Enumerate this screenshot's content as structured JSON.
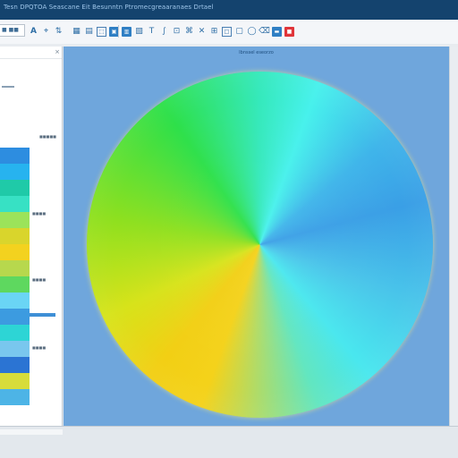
{
  "window": {
    "title": "Tesn DPQTOA Seascane Eit Besunntn Ptromecgreaaranaes Drtael"
  },
  "toolbar": {
    "file_box_label": "■ ■■",
    "buttons": [
      {
        "name": "font-a-icon",
        "glyph": "A"
      },
      {
        "name": "format-painter-icon",
        "glyph": "⌖"
      },
      {
        "name": "sort-icon",
        "glyph": "⇅"
      },
      {
        "name": "grid-icon",
        "glyph": "▦"
      },
      {
        "name": "table-icon",
        "glyph": "▤"
      },
      {
        "name": "select-icon",
        "glyph": "⬚"
      },
      {
        "name": "image-icon",
        "glyph": "▣"
      },
      {
        "name": "chart-icon",
        "glyph": "▥"
      },
      {
        "name": "layers-icon",
        "glyph": "▧"
      },
      {
        "name": "text-icon",
        "glyph": "T"
      },
      {
        "name": "curve-icon",
        "glyph": "∫"
      },
      {
        "name": "snap-icon",
        "glyph": "⊡"
      },
      {
        "name": "transform-icon",
        "glyph": "⌘"
      },
      {
        "name": "cross-icon",
        "glyph": "✕"
      },
      {
        "name": "axes-icon",
        "glyph": "⊞"
      },
      {
        "name": "box-icon",
        "glyph": "□"
      },
      {
        "name": "frame-icon",
        "glyph": "▢"
      },
      {
        "name": "lasso-icon",
        "glyph": "◯"
      },
      {
        "name": "eraser-icon",
        "glyph": "⌫"
      },
      {
        "name": "color-fill-icon",
        "glyph": "▬"
      },
      {
        "name": "alert-icon",
        "glyph": "■"
      }
    ]
  },
  "left_panel": {
    "close_glyph": "×",
    "labels": [
      "■■■■■",
      "■■■■",
      "■■■■",
      "■■■■"
    ]
  },
  "swatches": [
    "#2d8de0",
    "#27b3ef",
    "#1fcaa8",
    "#37e1c4",
    "#9be35a",
    "#d9d52c",
    "#f3d21f",
    "#b7d84d",
    "#5ed85f",
    "#6ad5f5",
    "#3c9be0",
    "#2dd5d5",
    "#79c7ee",
    "#2b74d3",
    "#d7dc3a",
    "#4db4e6"
  ],
  "canvas": {
    "label": "Ibnssel eseorzo"
  },
  "colors": {
    "titlebar": "#14436e",
    "canvas": "#6fa6dc",
    "accent": "#2f7fc4"
  }
}
